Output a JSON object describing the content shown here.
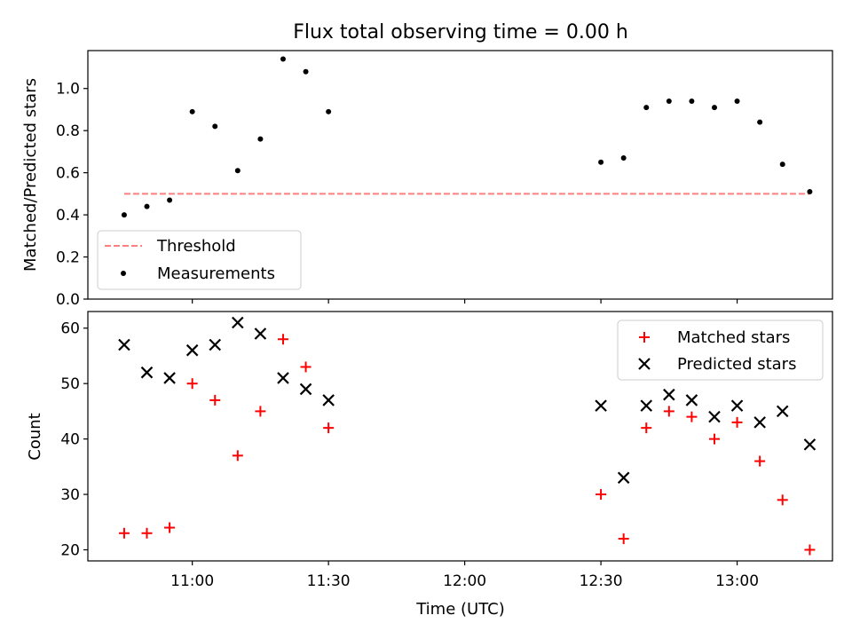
{
  "chart_data": [
    {
      "type": "scatter",
      "title": "Flux total observing time = 0.00 h",
      "xlabel": "",
      "ylabel": "Matched/Predicted stars",
      "ylim": [
        0,
        1.18
      ],
      "yticks": [
        "0.0",
        "0.2",
        "0.4",
        "0.6",
        "0.8",
        "1.0"
      ],
      "ytick_values": [
        0,
        0.2,
        0.4,
        0.6,
        0.8,
        1.0
      ],
      "threshold": {
        "name": "Threshold",
        "value": 0.5,
        "x_start": "10:45",
        "x_end": "13:16",
        "color": "#ff7f7f"
      },
      "series": [
        {
          "name": "Measurements",
          "color": "#000000",
          "x": [
            "10:45",
            "10:50",
            "10:55",
            "11:00",
            "11:05",
            "11:10",
            "11:15",
            "11:20",
            "11:25",
            "11:30",
            "12:30",
            "12:35",
            "12:40",
            "12:45",
            "12:50",
            "12:55",
            "13:00",
            "13:05",
            "13:10",
            "13:16"
          ],
          "values": [
            0.4,
            0.44,
            0.47,
            0.89,
            0.82,
            0.61,
            0.76,
            1.14,
            1.08,
            0.89,
            0.65,
            0.67,
            0.91,
            0.94,
            0.94,
            0.91,
            0.94,
            0.84,
            0.64,
            0.51
          ]
        }
      ],
      "legend": {
        "placement": "lower-left"
      },
      "grid": false
    },
    {
      "type": "scatter",
      "title": "",
      "xlabel": "Time (UTC)",
      "ylabel": "Count",
      "ylim": [
        18,
        63
      ],
      "yticks": [
        "20",
        "30",
        "40",
        "50",
        "60"
      ],
      "ytick_values": [
        20,
        30,
        40,
        50,
        60
      ],
      "xlim": [
        "10:37",
        "13:21"
      ],
      "xticks": [
        "11:00",
        "11:30",
        "12:00",
        "12:30",
        "13:00"
      ],
      "series": [
        {
          "name": "Matched stars",
          "marker": "plus",
          "color": "#ff0000",
          "x": [
            "10:45",
            "10:50",
            "10:55",
            "11:00",
            "11:05",
            "11:10",
            "11:15",
            "11:20",
            "11:25",
            "11:30",
            "12:30",
            "12:35",
            "12:40",
            "12:45",
            "12:50",
            "12:55",
            "13:00",
            "13:05",
            "13:10",
            "13:16"
          ],
          "values": [
            23,
            23,
            24,
            50,
            47,
            37,
            45,
            58,
            53,
            42,
            30,
            22,
            42,
            45,
            44,
            40,
            43,
            36,
            29,
            20
          ]
        },
        {
          "name": "Predicted stars",
          "marker": "x",
          "color": "#000000",
          "x": [
            "10:45",
            "10:50",
            "10:55",
            "11:00",
            "11:05",
            "11:10",
            "11:15",
            "11:20",
            "11:25",
            "11:30",
            "12:30",
            "12:35",
            "12:40",
            "12:45",
            "12:50",
            "12:55",
            "13:00",
            "13:05",
            "13:10",
            "13:16"
          ],
          "values": [
            57,
            52,
            51,
            56,
            57,
            61,
            59,
            51,
            49,
            47,
            46,
            33,
            46,
            48,
            47,
            44,
            46,
            43,
            45,
            39
          ]
        }
      ],
      "legend": {
        "placement": "top-right"
      },
      "grid": false
    }
  ]
}
